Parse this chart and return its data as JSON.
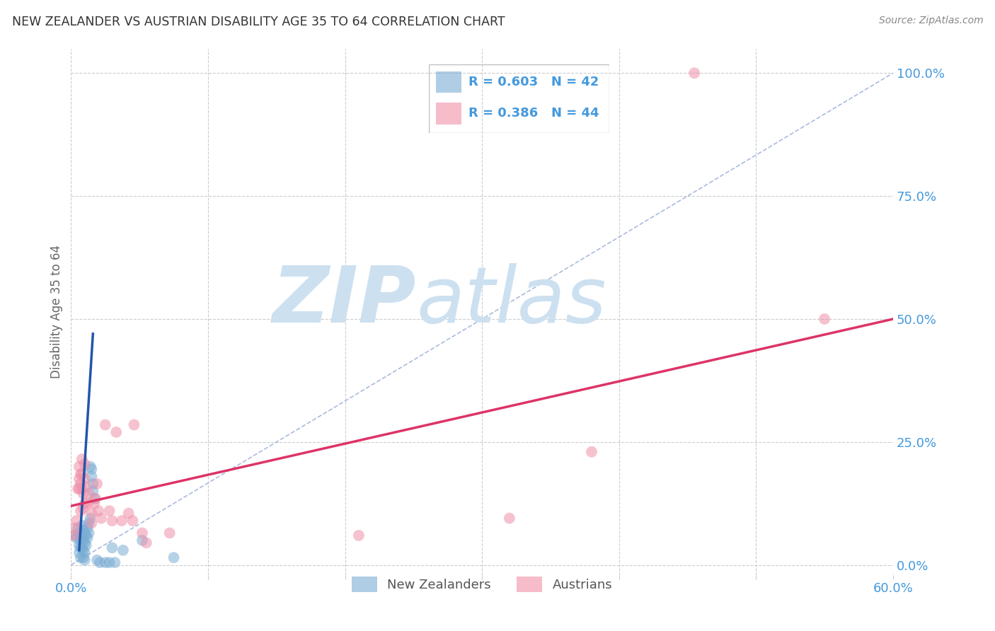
{
  "title": "NEW ZEALANDER VS AUSTRIAN DISABILITY AGE 35 TO 64 CORRELATION CHART",
  "source": "Source: ZipAtlas.com",
  "ylabel": "Disability Age 35 to 64",
  "xlim": [
    0.0,
    0.6
  ],
  "ylim": [
    -0.02,
    1.05
  ],
  "xticks": [
    0.0,
    0.1,
    0.2,
    0.3,
    0.4,
    0.5,
    0.6
  ],
  "yticks": [
    0.0,
    0.25,
    0.5,
    0.75,
    1.0
  ],
  "ytick_labels": [
    "0.0%",
    "25.0%",
    "50.0%",
    "75.0%",
    "100.0%"
  ],
  "xtick_labels": [
    "0.0%",
    "",
    "",
    "",
    "",
    "",
    "60.0%"
  ],
  "nz_color": "#7aadd4",
  "at_color": "#f090a8",
  "nz_line_color": "#2255aa",
  "at_line_color": "#dd3366",
  "diag_color": "#aabbdd",
  "nz_R": 0.603,
  "nz_N": 42,
  "at_R": 0.386,
  "at_N": 44,
  "watermark_zip": "ZIP",
  "watermark_atlas": "atlas",
  "watermark_color": "#cce0f0",
  "grid_color": "#cccccc",
  "axis_tick_color": "#4499dd",
  "ylabel_color": "#666666",
  "title_color": "#333333",
  "source_color": "#888888",
  "nz_points": [
    [
      0.003,
      0.06
    ],
    [
      0.004,
      0.055
    ],
    [
      0.005,
      0.075
    ],
    [
      0.006,
      0.065
    ],
    [
      0.006,
      0.04
    ],
    [
      0.006,
      0.025
    ],
    [
      0.007,
      0.05
    ],
    [
      0.007,
      0.035
    ],
    [
      0.007,
      0.015
    ],
    [
      0.008,
      0.08
    ],
    [
      0.008,
      0.055
    ],
    [
      0.008,
      0.035
    ],
    [
      0.009,
      0.07
    ],
    [
      0.009,
      0.05
    ],
    [
      0.009,
      0.03
    ],
    [
      0.009,
      0.015
    ],
    [
      0.01,
      0.065
    ],
    [
      0.01,
      0.045
    ],
    [
      0.01,
      0.025
    ],
    [
      0.01,
      0.01
    ],
    [
      0.011,
      0.06
    ],
    [
      0.011,
      0.04
    ],
    [
      0.012,
      0.075
    ],
    [
      0.012,
      0.055
    ],
    [
      0.013,
      0.085
    ],
    [
      0.013,
      0.065
    ],
    [
      0.014,
      0.095
    ],
    [
      0.014,
      0.2
    ],
    [
      0.015,
      0.195
    ],
    [
      0.015,
      0.18
    ],
    [
      0.016,
      0.165
    ],
    [
      0.016,
      0.15
    ],
    [
      0.017,
      0.135
    ],
    [
      0.019,
      0.01
    ],
    [
      0.021,
      0.005
    ],
    [
      0.025,
      0.005
    ],
    [
      0.028,
      0.005
    ],
    [
      0.03,
      0.035
    ],
    [
      0.032,
      0.005
    ],
    [
      0.038,
      0.03
    ],
    [
      0.052,
      0.05
    ],
    [
      0.075,
      0.015
    ]
  ],
  "at_points": [
    [
      0.002,
      0.06
    ],
    [
      0.003,
      0.075
    ],
    [
      0.004,
      0.09
    ],
    [
      0.005,
      0.155
    ],
    [
      0.006,
      0.175
    ],
    [
      0.006,
      0.2
    ],
    [
      0.006,
      0.155
    ],
    [
      0.007,
      0.185
    ],
    [
      0.007,
      0.165
    ],
    [
      0.007,
      0.11
    ],
    [
      0.008,
      0.215
    ],
    [
      0.008,
      0.185
    ],
    [
      0.008,
      0.155
    ],
    [
      0.009,
      0.145
    ],
    [
      0.009,
      0.115
    ],
    [
      0.01,
      0.205
    ],
    [
      0.01,
      0.175
    ],
    [
      0.01,
      0.125
    ],
    [
      0.011,
      0.16
    ],
    [
      0.012,
      0.125
    ],
    [
      0.013,
      0.145
    ],
    [
      0.015,
      0.105
    ],
    [
      0.015,
      0.085
    ],
    [
      0.017,
      0.125
    ],
    [
      0.018,
      0.135
    ],
    [
      0.019,
      0.165
    ],
    [
      0.02,
      0.11
    ],
    [
      0.022,
      0.095
    ],
    [
      0.025,
      0.285
    ],
    [
      0.028,
      0.11
    ],
    [
      0.03,
      0.09
    ],
    [
      0.033,
      0.27
    ],
    [
      0.037,
      0.09
    ],
    [
      0.042,
      0.105
    ],
    [
      0.045,
      0.09
    ],
    [
      0.046,
      0.285
    ],
    [
      0.052,
      0.065
    ],
    [
      0.055,
      0.045
    ],
    [
      0.072,
      0.065
    ],
    [
      0.21,
      0.06
    ],
    [
      0.32,
      0.095
    ],
    [
      0.38,
      0.23
    ],
    [
      0.455,
      1.0
    ],
    [
      0.55,
      0.5
    ]
  ],
  "nz_line_x": [
    0.006,
    0.016
  ],
  "nz_line_y_start": 0.03,
  "nz_line_y_end": 0.47,
  "at_line_x": [
    0.0,
    0.6
  ],
  "at_line_y_start": 0.12,
  "at_line_y_end": 0.5
}
